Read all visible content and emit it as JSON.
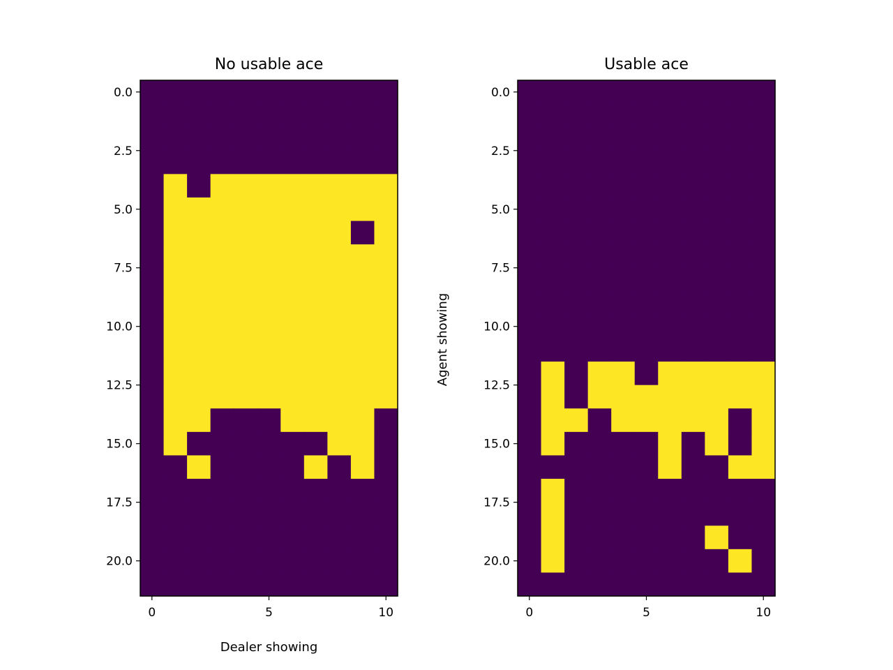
{
  "chart_data": [
    {
      "type": "heatmap",
      "title": "No usable ace",
      "xlabel": "Dealer showing",
      "ylabel": "",
      "xlim": [
        -0.5,
        10.5
      ],
      "ylim": [
        21.5,
        -0.5
      ],
      "xticks": [
        0,
        5,
        10
      ],
      "xtick_labels": [
        "0",
        "5",
        "10"
      ],
      "yticks": [
        0,
        2.5,
        5,
        7.5,
        10,
        12.5,
        15,
        17.5,
        20
      ],
      "ytick_labels": [
        "0.0",
        "2.5",
        "5.0",
        "7.5",
        "10.0",
        "12.5",
        "15.0",
        "17.5",
        "20.0"
      ],
      "colors": {
        "0": "#440154",
        "1": "#fde725"
      },
      "grid": false,
      "values": [
        [
          0,
          0,
          0,
          0,
          0,
          0,
          0,
          0,
          0,
          0,
          0
        ],
        [
          0,
          0,
          0,
          0,
          0,
          0,
          0,
          0,
          0,
          0,
          0
        ],
        [
          0,
          0,
          0,
          0,
          0,
          0,
          0,
          0,
          0,
          0,
          0
        ],
        [
          0,
          0,
          0,
          0,
          0,
          0,
          0,
          0,
          0,
          0,
          0
        ],
        [
          0,
          1,
          0,
          1,
          1,
          1,
          1,
          1,
          1,
          1,
          1
        ],
        [
          0,
          1,
          1,
          1,
          1,
          1,
          1,
          1,
          1,
          1,
          1
        ],
        [
          0,
          1,
          1,
          1,
          1,
          1,
          1,
          1,
          1,
          0,
          1
        ],
        [
          0,
          1,
          1,
          1,
          1,
          1,
          1,
          1,
          1,
          1,
          1
        ],
        [
          0,
          1,
          1,
          1,
          1,
          1,
          1,
          1,
          1,
          1,
          1
        ],
        [
          0,
          1,
          1,
          1,
          1,
          1,
          1,
          1,
          1,
          1,
          1
        ],
        [
          0,
          1,
          1,
          1,
          1,
          1,
          1,
          1,
          1,
          1,
          1
        ],
        [
          0,
          1,
          1,
          1,
          1,
          1,
          1,
          1,
          1,
          1,
          1
        ],
        [
          0,
          1,
          1,
          1,
          1,
          1,
          1,
          1,
          1,
          1,
          1
        ],
        [
          0,
          1,
          1,
          1,
          1,
          1,
          1,
          1,
          1,
          1,
          1
        ],
        [
          0,
          1,
          1,
          0,
          0,
          0,
          1,
          1,
          1,
          1,
          0
        ],
        [
          0,
          1,
          0,
          0,
          0,
          0,
          0,
          0,
          1,
          1,
          0
        ],
        [
          0,
          0,
          1,
          0,
          0,
          0,
          0,
          1,
          0,
          1,
          0
        ],
        [
          0,
          0,
          0,
          0,
          0,
          0,
          0,
          0,
          0,
          0,
          0
        ],
        [
          0,
          0,
          0,
          0,
          0,
          0,
          0,
          0,
          0,
          0,
          0
        ],
        [
          0,
          0,
          0,
          0,
          0,
          0,
          0,
          0,
          0,
          0,
          0
        ],
        [
          0,
          0,
          0,
          0,
          0,
          0,
          0,
          0,
          0,
          0,
          0
        ],
        [
          0,
          0,
          0,
          0,
          0,
          0,
          0,
          0,
          0,
          0,
          0
        ]
      ]
    },
    {
      "type": "heatmap",
      "title": "Usable ace",
      "xlabel": "",
      "ylabel": "Agent showing",
      "xlim": [
        -0.5,
        10.5
      ],
      "ylim": [
        21.5,
        -0.5
      ],
      "xticks": [
        0,
        5,
        10
      ],
      "xtick_labels": [
        "0",
        "5",
        "10"
      ],
      "yticks": [
        0,
        2.5,
        5,
        7.5,
        10,
        12.5,
        15,
        17.5,
        20
      ],
      "ytick_labels": [
        "0.0",
        "2.5",
        "5.0",
        "7.5",
        "10.0",
        "12.5",
        "15.0",
        "17.5",
        "20.0"
      ],
      "colors": {
        "0": "#440154",
        "1": "#fde725"
      },
      "grid": false,
      "values": [
        [
          0,
          0,
          0,
          0,
          0,
          0,
          0,
          0,
          0,
          0,
          0
        ],
        [
          0,
          0,
          0,
          0,
          0,
          0,
          0,
          0,
          0,
          0,
          0
        ],
        [
          0,
          0,
          0,
          0,
          0,
          0,
          0,
          0,
          0,
          0,
          0
        ],
        [
          0,
          0,
          0,
          0,
          0,
          0,
          0,
          0,
          0,
          0,
          0
        ],
        [
          0,
          0,
          0,
          0,
          0,
          0,
          0,
          0,
          0,
          0,
          0
        ],
        [
          0,
          0,
          0,
          0,
          0,
          0,
          0,
          0,
          0,
          0,
          0
        ],
        [
          0,
          0,
          0,
          0,
          0,
          0,
          0,
          0,
          0,
          0,
          0
        ],
        [
          0,
          0,
          0,
          0,
          0,
          0,
          0,
          0,
          0,
          0,
          0
        ],
        [
          0,
          0,
          0,
          0,
          0,
          0,
          0,
          0,
          0,
          0,
          0
        ],
        [
          0,
          0,
          0,
          0,
          0,
          0,
          0,
          0,
          0,
          0,
          0
        ],
        [
          0,
          0,
          0,
          0,
          0,
          0,
          0,
          0,
          0,
          0,
          0
        ],
        [
          0,
          0,
          0,
          0,
          0,
          0,
          0,
          0,
          0,
          0,
          0
        ],
        [
          0,
          1,
          0,
          1,
          1,
          0,
          1,
          1,
          1,
          1,
          1
        ],
        [
          0,
          1,
          0,
          1,
          1,
          1,
          1,
          1,
          1,
          1,
          1
        ],
        [
          0,
          1,
          1,
          0,
          1,
          1,
          1,
          1,
          1,
          0,
          1
        ],
        [
          0,
          1,
          0,
          0,
          0,
          0,
          1,
          0,
          1,
          0,
          1
        ],
        [
          0,
          0,
          0,
          0,
          0,
          0,
          1,
          0,
          0,
          1,
          1
        ],
        [
          0,
          1,
          0,
          0,
          0,
          0,
          0,
          0,
          0,
          0,
          0
        ],
        [
          0,
          1,
          0,
          0,
          0,
          0,
          0,
          0,
          0,
          0,
          0
        ],
        [
          0,
          1,
          0,
          0,
          0,
          0,
          0,
          0,
          1,
          0,
          0
        ],
        [
          0,
          1,
          0,
          0,
          0,
          0,
          0,
          0,
          0,
          1,
          0
        ],
        [
          0,
          0,
          0,
          0,
          0,
          0,
          0,
          0,
          0,
          0,
          0
        ]
      ]
    }
  ]
}
